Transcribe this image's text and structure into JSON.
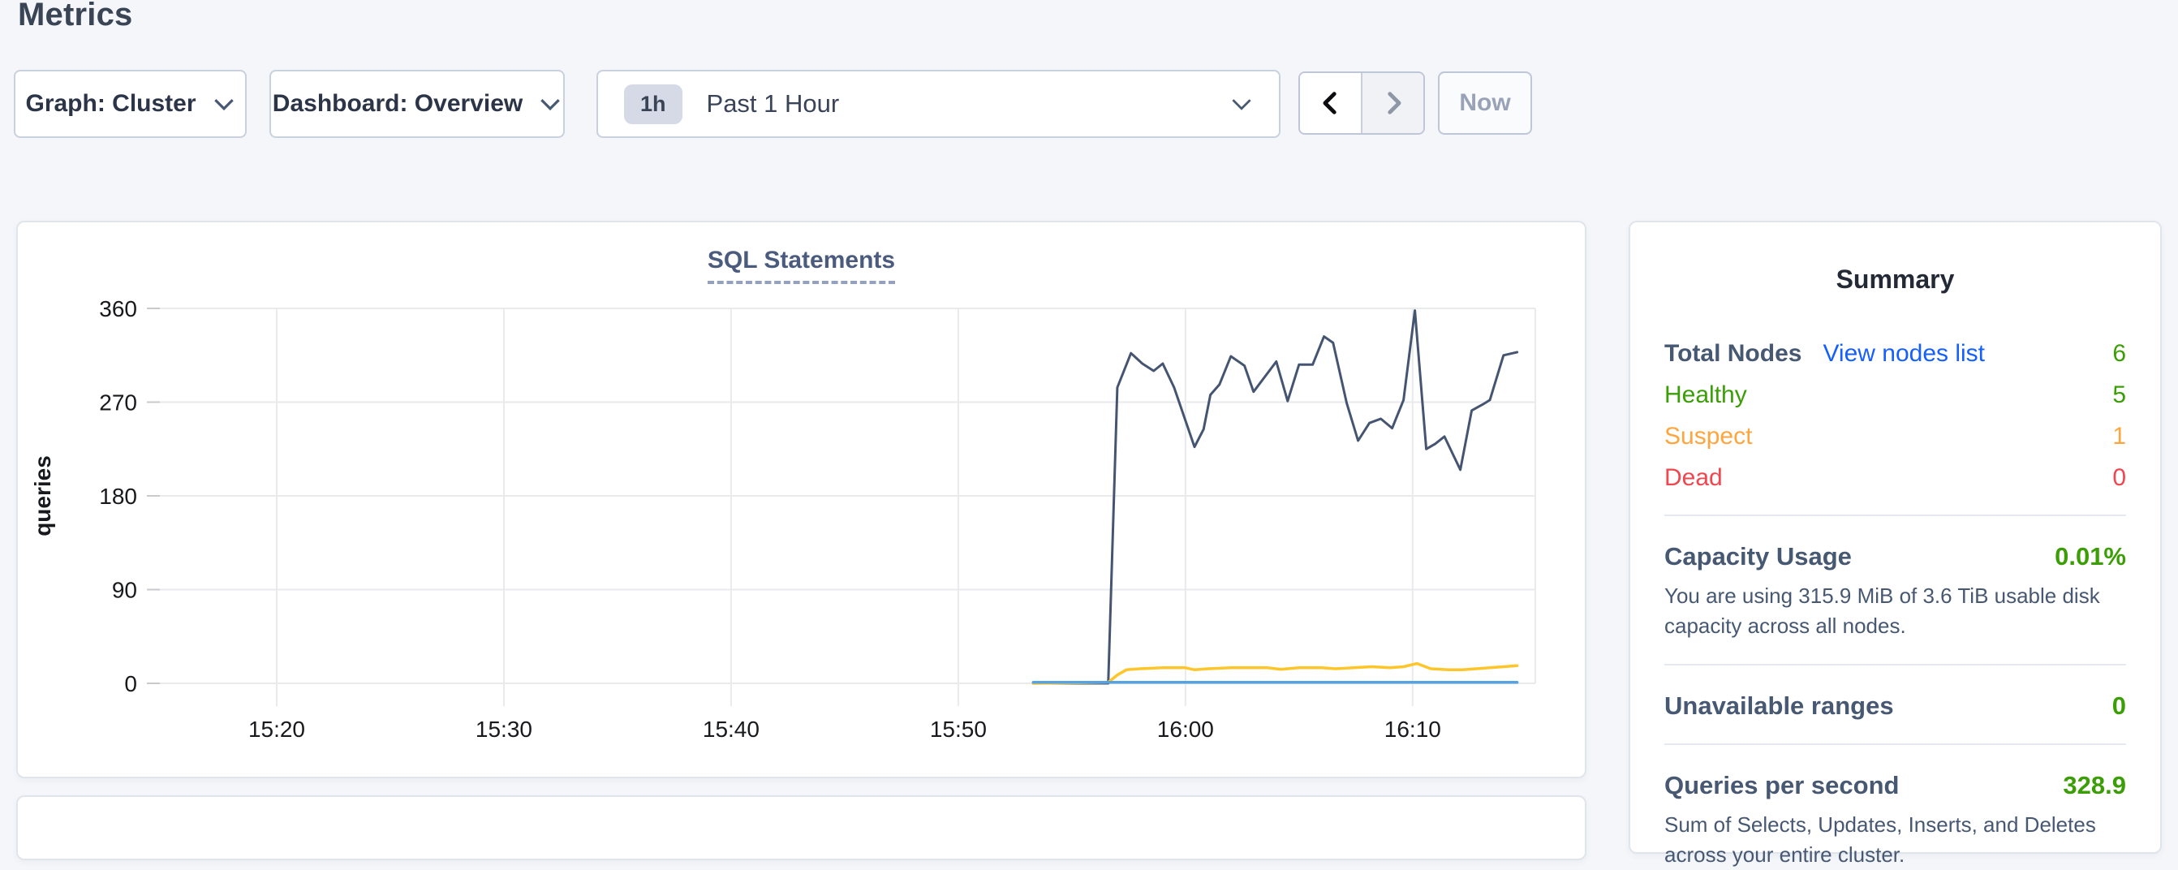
{
  "page": {
    "title": "Metrics"
  },
  "toolbar": {
    "graph_selector": "Graph: Cluster",
    "dashboard_selector": "Dashboard: Overview",
    "time_range_badge": "1h",
    "time_range_label": "Past 1 Hour",
    "now_label": "Now",
    "icons": {
      "dropdown": "chevron-down",
      "prev": "chevron-left",
      "next": "chevron-right"
    }
  },
  "colors": {
    "healthy_green": "#3b9e06",
    "suspect_orange": "#ffa53e",
    "dead_red": "#ef4650",
    "link_blue": "#155fff",
    "series_dark": "#455571",
    "series_yellow": "#ffc529",
    "series_light_blue": "#55a3e2"
  },
  "chart_data": {
    "type": "line",
    "title": "SQL Statements",
    "ylabel": "queries",
    "xlabel": "",
    "ylim": [
      0,
      360
    ],
    "yticks": [
      0,
      90,
      180,
      270,
      360
    ],
    "x_unit": "minutes after 15:20",
    "x_window": [
      -5.5,
      55.4
    ],
    "grid": true,
    "legend": "none",
    "xticks": [
      {
        "t": 0,
        "label": "15:20"
      },
      {
        "t": 10,
        "label": "15:30"
      },
      {
        "t": 20,
        "label": "15:40"
      },
      {
        "t": 30,
        "label": "15:50"
      },
      {
        "t": 40,
        "label": "16:00"
      },
      {
        "t": 50,
        "label": "16:10"
      }
    ],
    "series": [
      {
        "name": "series-dark-blue",
        "color": "#455571",
        "width": 3,
        "points": [
          [
            33.3,
            0
          ],
          [
            34.5,
            0
          ],
          [
            35.5,
            0
          ],
          [
            36.6,
            0
          ],
          [
            37.0,
            284
          ],
          [
            37.6,
            317
          ],
          [
            38.1,
            307
          ],
          [
            38.6,
            300
          ],
          [
            39.0,
            307
          ],
          [
            39.5,
            284
          ],
          [
            40.4,
            227
          ],
          [
            40.8,
            244
          ],
          [
            41.1,
            277
          ],
          [
            41.5,
            287
          ],
          [
            42.0,
            314
          ],
          [
            42.6,
            305
          ],
          [
            43.0,
            280
          ],
          [
            44.0,
            309
          ],
          [
            44.5,
            271
          ],
          [
            45.0,
            306
          ],
          [
            45.6,
            306
          ],
          [
            46.1,
            333
          ],
          [
            46.5,
            327
          ],
          [
            47.1,
            269
          ],
          [
            47.6,
            233
          ],
          [
            48.1,
            250
          ],
          [
            48.6,
            254
          ],
          [
            49.1,
            245
          ],
          [
            49.6,
            272
          ],
          [
            50.1,
            358
          ],
          [
            50.6,
            225
          ],
          [
            51.0,
            230
          ],
          [
            51.4,
            237
          ],
          [
            52.1,
            205
          ],
          [
            52.6,
            262
          ],
          [
            53.1,
            268
          ],
          [
            53.4,
            272
          ],
          [
            54.0,
            315
          ],
          [
            54.6,
            318
          ]
        ]
      },
      {
        "name": "series-yellow",
        "color": "#ffc529",
        "width": 3.5,
        "points": [
          [
            33.3,
            0
          ],
          [
            36.6,
            1
          ],
          [
            37.0,
            8
          ],
          [
            37.4,
            13
          ],
          [
            38.0,
            14
          ],
          [
            39.0,
            15
          ],
          [
            40.0,
            15
          ],
          [
            40.4,
            13
          ],
          [
            41.0,
            14
          ],
          [
            42.0,
            15
          ],
          [
            43.0,
            15
          ],
          [
            43.6,
            15
          ],
          [
            44.2,
            13.5
          ],
          [
            45.0,
            15
          ],
          [
            46.0,
            15
          ],
          [
            46.6,
            14
          ],
          [
            47.4,
            15
          ],
          [
            48.2,
            16
          ],
          [
            49.0,
            15
          ],
          [
            49.6,
            16
          ],
          [
            50.2,
            19
          ],
          [
            50.8,
            14
          ],
          [
            51.6,
            13
          ],
          [
            52.2,
            13
          ],
          [
            52.8,
            14
          ],
          [
            53.4,
            15
          ],
          [
            54.0,
            16
          ],
          [
            54.6,
            17
          ]
        ]
      },
      {
        "name": "series-light-blue",
        "color": "#55a3e2",
        "width": 3.5,
        "points": [
          [
            33.3,
            1
          ],
          [
            54.6,
            1
          ]
        ]
      }
    ]
  },
  "summary": {
    "title": "Summary",
    "nodes": {
      "label": "Total Nodes",
      "link_label": "View nodes list",
      "value": "6",
      "rows": [
        {
          "label": "Healthy",
          "value": "5"
        },
        {
          "label": "Suspect",
          "value": "1"
        },
        {
          "label": "Dead",
          "value": "0"
        }
      ]
    },
    "capacity": {
      "label": "Capacity Usage",
      "value": "0.01%",
      "description": "You are using 315.9 MiB of 3.6 TiB usable disk capacity across all nodes."
    },
    "unavailable": {
      "label": "Unavailable ranges",
      "value": "0"
    },
    "qps": {
      "label": "Queries per second",
      "value": "328.9",
      "description": "Sum of Selects, Updates, Inserts, and Deletes across your entire cluster."
    }
  }
}
